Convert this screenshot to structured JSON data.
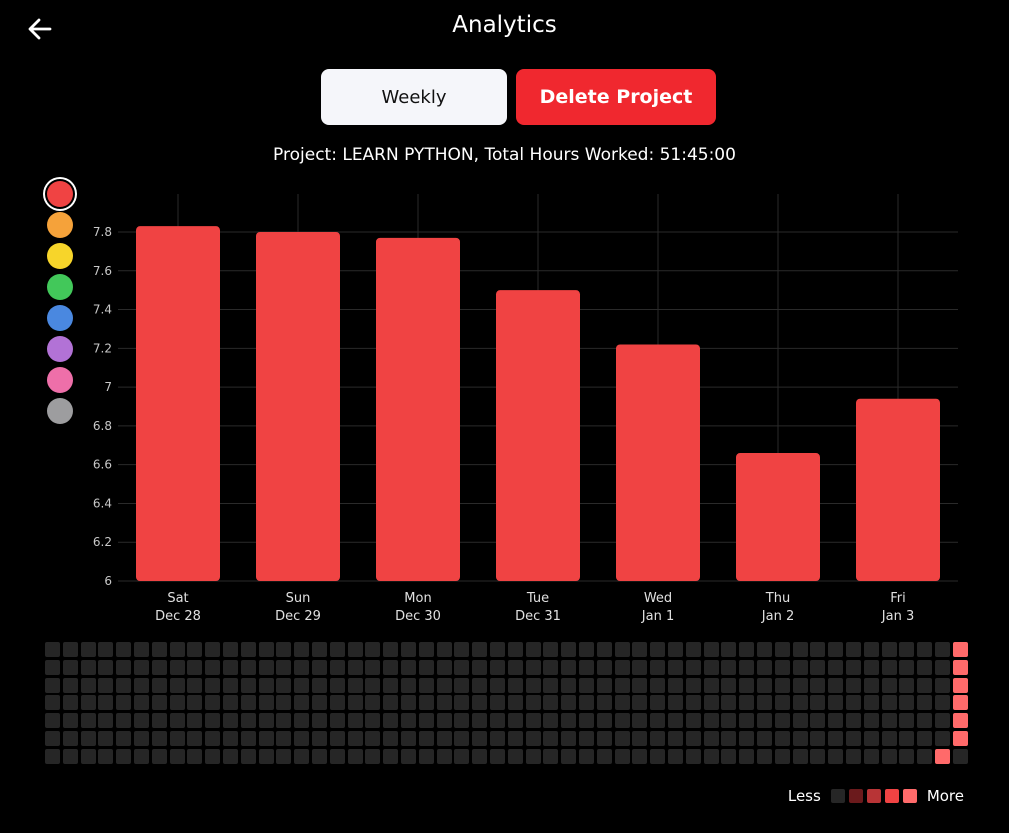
{
  "header": {
    "title": "Analytics",
    "back_icon": "arrow-left-icon"
  },
  "buttons": {
    "weekly_label": "Weekly",
    "delete_label": "Delete Project"
  },
  "project_info": "Project: LEARN PYTHON, Total Hours Worked: 51:45:00",
  "colors": {
    "accent": "#f04343",
    "delete": "#f0282f",
    "palette": [
      "#f04343",
      "#f5a23a",
      "#f7d52a",
      "#42c85a",
      "#4a88e0",
      "#b272d6",
      "#ee6fa9",
      "#9d9d9f"
    ],
    "selected_index": 0
  },
  "chart_data": {
    "type": "bar",
    "categories": [
      [
        "Sat",
        "Dec 28"
      ],
      [
        "Sun",
        "Dec 29"
      ],
      [
        "Mon",
        "Dec 30"
      ],
      [
        "Tue",
        "Dec 31"
      ],
      [
        "Wed",
        "Jan 1"
      ],
      [
        "Thu",
        "Jan 2"
      ],
      [
        "Fri",
        "Jan 3"
      ]
    ],
    "values": [
      7.83,
      7.8,
      7.77,
      7.5,
      7.22,
      6.66,
      6.94
    ],
    "ylim": [
      6,
      8
    ],
    "yticks": [
      "6",
      "6.2",
      "6.4",
      "6.6",
      "6.8",
      "7",
      "7.2",
      "7.4",
      "7.6",
      "7.8"
    ],
    "grid": true
  },
  "heatmap": {
    "weeks": 52,
    "days": 7,
    "active": [
      [
        51,
        0,
        4
      ],
      [
        51,
        1,
        4
      ],
      [
        51,
        2,
        4
      ],
      [
        51,
        3,
        4
      ],
      [
        51,
        4,
        4
      ],
      [
        51,
        5,
        4
      ],
      [
        50,
        6,
        4
      ]
    ],
    "empty_color": "#262626",
    "scale_colors": [
      "#262626",
      "#6b1a1c",
      "#b83436",
      "#f04343",
      "#ff6a6a"
    ]
  },
  "legend": {
    "less_label": "Less",
    "more_label": "More"
  }
}
